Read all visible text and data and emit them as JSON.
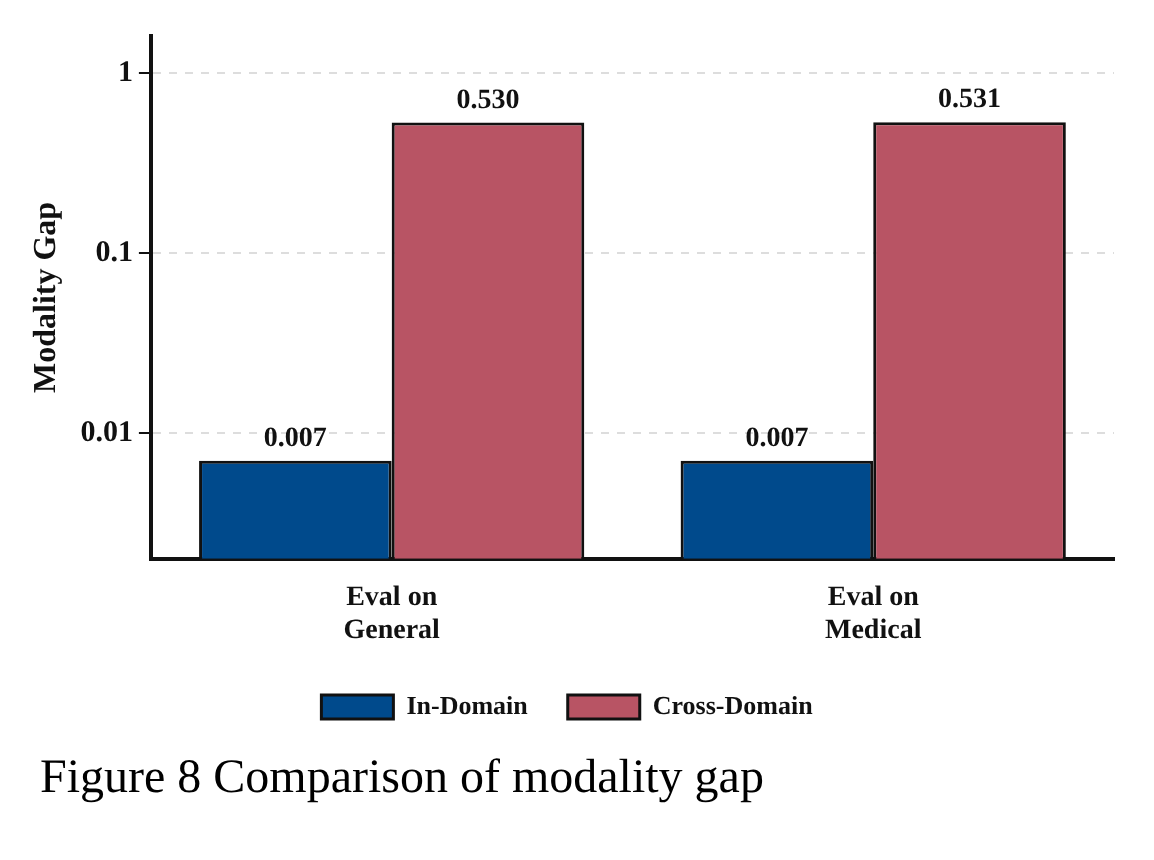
{
  "chart_data": {
    "type": "bar",
    "ylabel": "Modality Gap",
    "categories": [
      "Eval on\nGeneral",
      "Eval on\nMedical"
    ],
    "series": [
      {
        "name": "In-Domain",
        "color": "#004a8c",
        "values": [
          0.007,
          0.007
        ],
        "value_labels": [
          "0.007",
          "0.007"
        ]
      },
      {
        "name": "Cross-Domain",
        "color": "#b85464",
        "values": [
          0.53,
          0.531
        ],
        "value_labels": [
          "0.530",
          "0.531"
        ]
      }
    ],
    "log": "y",
    "ylim": [
      0.002,
      1.6
    ],
    "yticks": [
      0.01,
      0.1,
      1
    ],
    "grid": "y",
    "legend": "bottom",
    "annotations": [
      "Figure 8 Comparison of modality gap"
    ]
  }
}
